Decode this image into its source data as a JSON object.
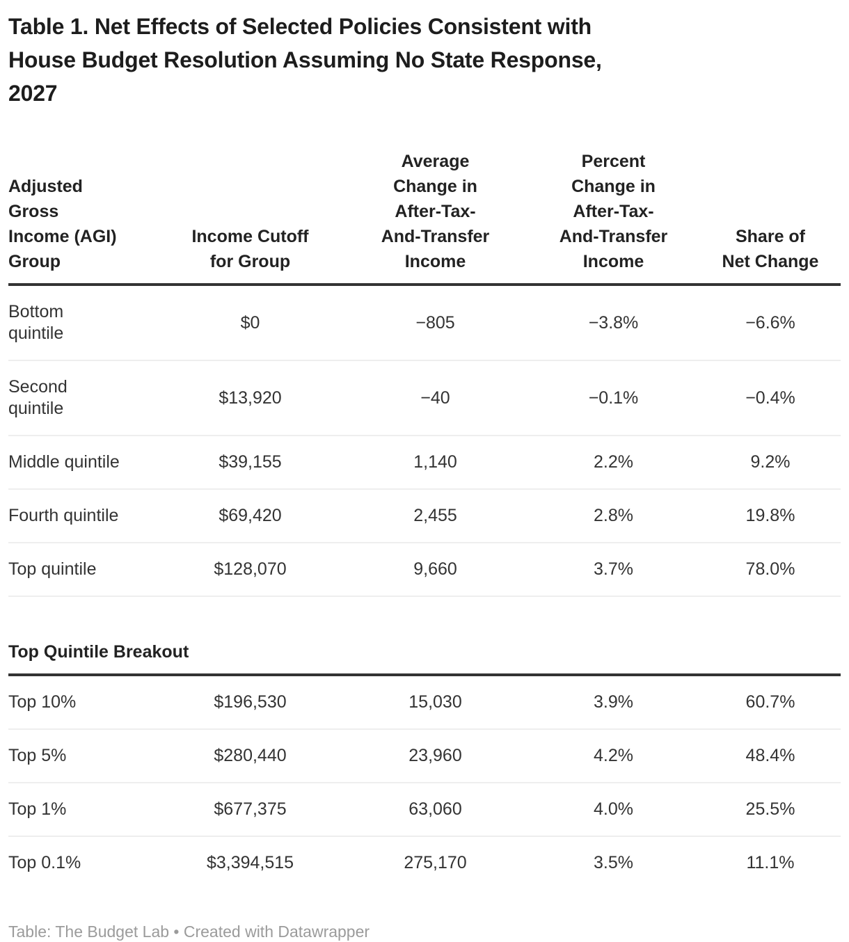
{
  "title": "Table 1. Net Effects of Selected Policies Consistent with\nHouse Budget Resolution Assuming No State Response,\n2027",
  "table": {
    "headers": {
      "col1": "Adjusted\nGross\nIncome (AGI)\nGroup",
      "col2": "Income Cutoff\nfor Group",
      "col3": "Average\nChange in\nAfter-Tax-\nAnd-Transfer\nIncome",
      "col4": "Percent\nChange in\nAfter-Tax-\nAnd-Transfer\nIncome",
      "col5": "Share of\nNet Change"
    },
    "rows": [
      {
        "group": "Bottom\nquintile",
        "cutoff": "$0",
        "avg": "−805",
        "pct": "−3.8%",
        "share": "−6.6%"
      },
      {
        "group": "Second\nquintile",
        "cutoff": "$13,920",
        "avg": "−40",
        "pct": "−0.1%",
        "share": "−0.4%"
      },
      {
        "group": "Middle quintile",
        "cutoff": "$39,155",
        "avg": "1,140",
        "pct": "2.2%",
        "share": "9.2%"
      },
      {
        "group": "Fourth quintile",
        "cutoff": "$69,420",
        "avg": "2,455",
        "pct": "2.8%",
        "share": "19.8%"
      },
      {
        "group": "Top quintile",
        "cutoff": "$128,070",
        "avg": "9,660",
        "pct": "3.7%",
        "share": "78.0%"
      }
    ],
    "section_label": "Top Quintile Breakout",
    "breakout_rows": [
      {
        "group": "Top 10%",
        "cutoff": "$196,530",
        "avg": "15,030",
        "pct": "3.9%",
        "share": "60.7%"
      },
      {
        "group": "Top 5%",
        "cutoff": "$280,440",
        "avg": "23,960",
        "pct": "4.2%",
        "share": "48.4%"
      },
      {
        "group": "Top 1%",
        "cutoff": "$677,375",
        "avg": "63,060",
        "pct": "4.0%",
        "share": "25.5%"
      },
      {
        "group": "Top 0.1%",
        "cutoff": "$3,394,515",
        "avg": "275,170",
        "pct": "3.5%",
        "share": "11.1%"
      }
    ]
  },
  "footer": {
    "credit": "Table: The Budget Lab • Created with Datawrapper"
  },
  "colors": {
    "title_text": "#1d1d1d",
    "body_text": "#333333",
    "heavy_rule": "#333333",
    "row_separator": "#eeeeee",
    "footer_text": "#9b9b9b"
  },
  "chart_data": {
    "type": "table",
    "title": "Table 1. Net Effects of Selected Policies Consistent with House Budget Resolution Assuming No State Response, 2027",
    "columns": [
      "Adjusted Gross Income (AGI) Group",
      "Income Cutoff for Group",
      "Average Change in After-Tax-And-Transfer Income",
      "Percent Change in After-Tax-And-Transfer Income",
      "Share of Net Change"
    ],
    "rows": [
      [
        "Bottom quintile",
        "$0",
        "−805",
        "−3.8%",
        "−6.6%"
      ],
      [
        "Second quintile",
        "$13,920",
        "−40",
        "−0.1%",
        "−0.4%"
      ],
      [
        "Middle quintile",
        "$39,155",
        "1,140",
        "2.2%",
        "9.2%"
      ],
      [
        "Fourth quintile",
        "$69,420",
        "2,455",
        "2.8%",
        "19.8%"
      ],
      [
        "Top quintile",
        "$128,070",
        "9,660",
        "3.7%",
        "78.0%"
      ]
    ],
    "section_header": "Top Quintile Breakout",
    "section_rows": [
      [
        "Top 10%",
        "$196,530",
        "15,030",
        "3.9%",
        "60.7%"
      ],
      [
        "Top 5%",
        "$280,440",
        "23,960",
        "4.2%",
        "48.4%"
      ],
      [
        "Top 1%",
        "$677,375",
        "63,060",
        "4.0%",
        "25.5%"
      ],
      [
        "Top 0.1%",
        "$3,394,515",
        "275,170",
        "3.5%",
        "11.1%"
      ]
    ],
    "numeric_values": {
      "income_cutoff": [
        0,
        13920,
        39155,
        69420,
        128070,
        196530,
        280440,
        677375,
        3394515
      ],
      "avg_change_income": [
        -805,
        -40,
        1140,
        2455,
        9660,
        15030,
        23960,
        63060,
        275170
      ],
      "pct_change_income": [
        -3.8,
        -0.1,
        2.2,
        2.8,
        3.7,
        3.9,
        4.2,
        4.0,
        3.5
      ],
      "share_of_net_change": [
        -6.6,
        -0.4,
        9.2,
        19.8,
        78.0,
        60.7,
        48.4,
        25.5,
        11.1
      ]
    },
    "footer": "Table: The Budget Lab • Created with Datawrapper"
  }
}
